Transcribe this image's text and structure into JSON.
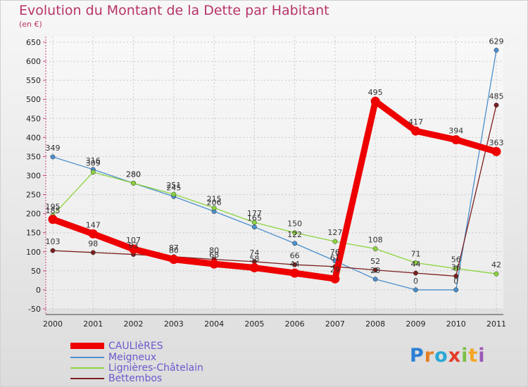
{
  "header": {
    "title": "Evolution du Montant de la Dette par Habitant",
    "subtitle": "(en €)"
  },
  "logo": {
    "letters": [
      "P",
      "r",
      "o",
      "x",
      "i",
      "t",
      "i"
    ],
    "colors": [
      "#2a7fd4",
      "#e67e22",
      "#2aa8d4",
      "#e63b2a",
      "#7bc043",
      "#f5a623",
      "#9b59b6"
    ]
  },
  "chart_data": {
    "type": "line",
    "title": "Evolution du Montant de la Dette par Habitant",
    "subtitle": "(en €)",
    "xlabel": "",
    "ylabel": "",
    "x": [
      "2000",
      "2001",
      "2002",
      "2003",
      "2004",
      "2005",
      "2006",
      "2007",
      "2008",
      "2009",
      "2010",
      "2011"
    ],
    "ylim": [
      -50,
      650
    ],
    "yticks": [
      "-50",
      "0",
      "50",
      "100",
      "150",
      "200",
      "250",
      "300",
      "350",
      "400",
      "450",
      "500",
      "550",
      "600",
      "650"
    ],
    "grid": true,
    "legend_position": "bottom-left",
    "series": [
      {
        "name": "CAULIèRES",
        "color": "#ee0000",
        "values": [
          185,
          147,
          107,
          80,
          68,
          58,
          44,
          29,
          495,
          417,
          394,
          363
        ],
        "labels": [
          "185",
          "147",
          "107",
          "80",
          "68",
          "58",
          "44",
          "29",
          "495",
          "417",
          "394",
          "363"
        ]
      },
      {
        "name": "Meigneux",
        "color": "#4b8fcc",
        "values": [
          349,
          316,
          280,
          245,
          206,
          165,
          122,
          76,
          28,
          0,
          0,
          629
        ],
        "labels": [
          "349",
          "316",
          "280",
          "245",
          "206",
          "165",
          "122",
          "76",
          "28",
          "0",
          "0",
          "629"
        ]
      },
      {
        "name": "Lignières-Châtelain",
        "color": "#8bd43e",
        "values": [
          195,
          309,
          280,
          251,
          215,
          177,
          150,
          127,
          108,
          71,
          56,
          42
        ],
        "labels": [
          "195",
          "309",
          "280",
          "251",
          "215",
          "177",
          "150",
          "127",
          "108",
          "71",
          "56",
          "42"
        ]
      },
      {
        "name": "Bettembos",
        "color": "#7a1f1f",
        "values": [
          103,
          98,
          93,
          87,
          80,
          74,
          66,
          61,
          52,
          44,
          36,
          485
        ],
        "labels": [
          "103",
          "98",
          "93",
          "87",
          "80",
          "74",
          "66",
          "61",
          "52",
          "44",
          "36",
          "485"
        ]
      }
    ]
  }
}
